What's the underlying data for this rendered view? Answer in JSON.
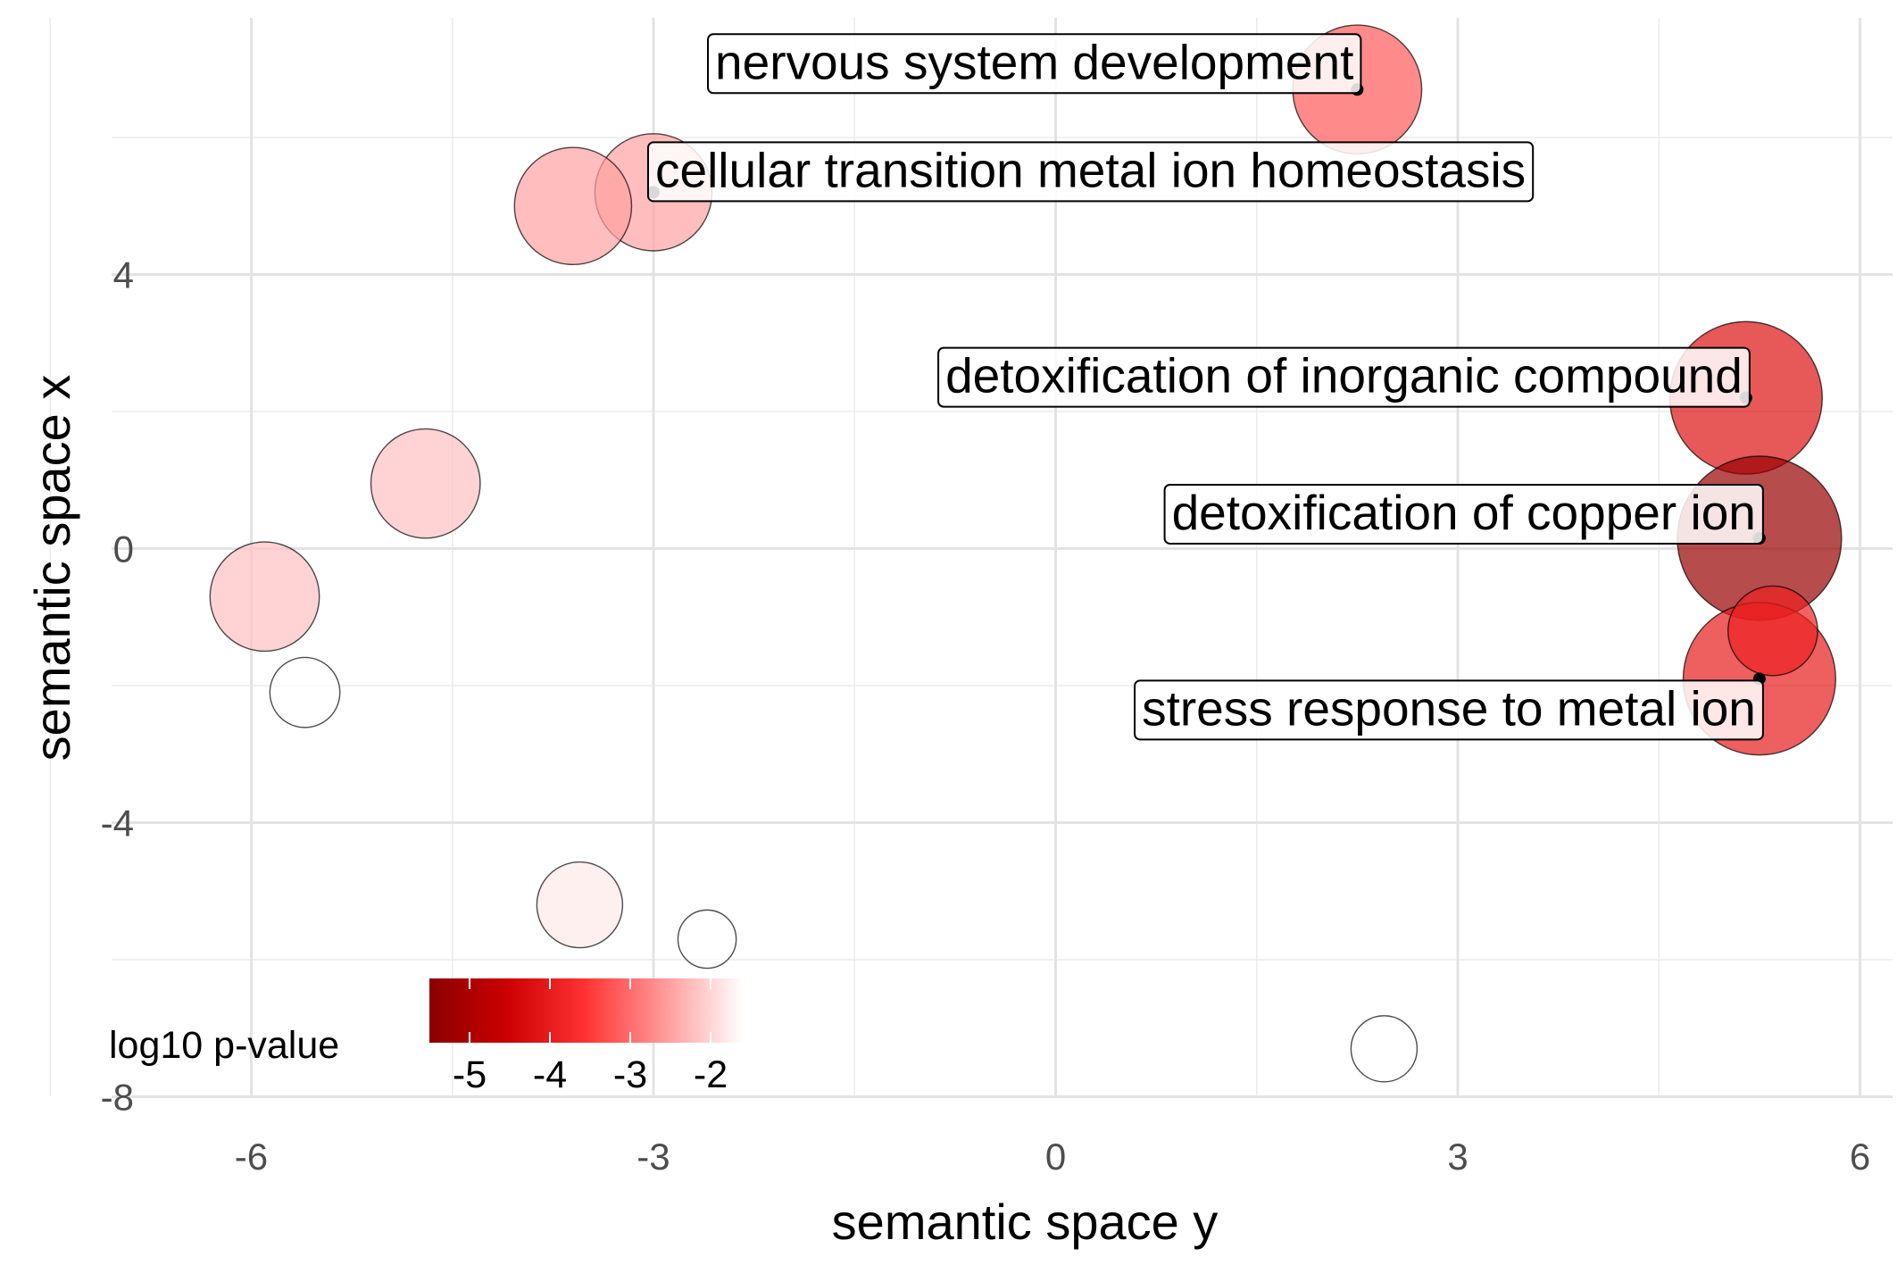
{
  "chart_data": {
    "type": "scatter",
    "title": "",
    "xlabel": "semantic space y",
    "ylabel": "semantic space x",
    "xlim": [
      -6.0,
      6.0
    ],
    "ylim": [
      -8,
      8
    ],
    "x_ticks": [
      -6,
      -3,
      0,
      3,
      6
    ],
    "y_ticks": [
      -8,
      -4,
      0,
      4
    ],
    "grid": true,
    "legend": {
      "title": "log10 p-value",
      "placement": "bottom-left",
      "ticks": [
        -5,
        -4,
        -3,
        -2
      ],
      "range": [
        -5.5,
        -1.6
      ],
      "colors": [
        "#8b0000",
        "#cc0000",
        "#ff3333",
        "#ff9999",
        "#ffffff"
      ]
    },
    "size_scale": [
      1.0,
      4.0
    ],
    "points": [
      {
        "x": 2.25,
        "y": 6.7,
        "pvalue": -3.2,
        "size": 3.1,
        "label": "nervous system development"
      },
      {
        "x": -3.0,
        "y": 5.2,
        "pvalue": -2.5,
        "size": 2.8,
        "label": "cellular transition metal ion homeostasis"
      },
      {
        "x": -3.6,
        "y": 5.0,
        "pvalue": -2.5,
        "size": 2.8,
        "label": ""
      },
      {
        "x": 5.15,
        "y": 2.2,
        "pvalue": -4.2,
        "size": 3.7,
        "label": "detoxification of inorganic compound"
      },
      {
        "x": 5.25,
        "y": 0.15,
        "pvalue": -5.3,
        "size": 4.0,
        "label": "detoxification of copper ion"
      },
      {
        "x": 5.25,
        "y": -1.9,
        "pvalue": -4.0,
        "size": 3.7,
        "label": "stress response to metal ion"
      },
      {
        "x": 5.35,
        "y": -1.2,
        "pvalue": -3.9,
        "size": 2.1,
        "label": ""
      },
      {
        "x": -4.7,
        "y": 0.95,
        "pvalue": -2.2,
        "size": 2.6,
        "label": ""
      },
      {
        "x": -5.9,
        "y": -0.7,
        "pvalue": -2.2,
        "size": 2.6,
        "label": ""
      },
      {
        "x": -5.6,
        "y": -2.1,
        "pvalue": -1.6,
        "size": 1.6,
        "label": ""
      },
      {
        "x": -3.55,
        "y": -5.2,
        "pvalue": -1.8,
        "size": 2.0,
        "label": ""
      },
      {
        "x": -2.6,
        "y": -5.7,
        "pvalue": -1.6,
        "size": 1.3,
        "label": ""
      },
      {
        "x": 2.45,
        "y": -7.3,
        "pvalue": -1.6,
        "size": 1.5,
        "label": ""
      }
    ]
  }
}
